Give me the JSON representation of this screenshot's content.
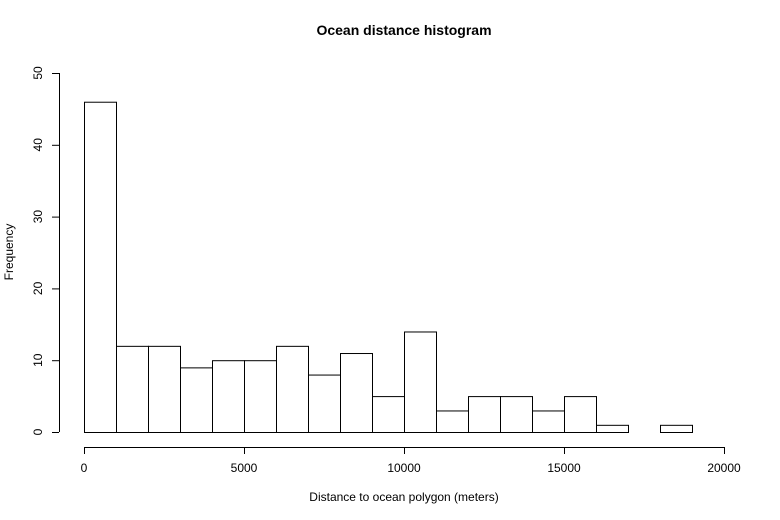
{
  "chart_data": {
    "type": "bar",
    "title": "Ocean distance histogram",
    "xlabel": "Distance to ocean polygon (meters)",
    "ylabel": "Frequency",
    "xlim": [
      0,
      20000
    ],
    "ylim": [
      0,
      50
    ],
    "x_ticks": [
      "0",
      "5000",
      "10000",
      "15000",
      "20000"
    ],
    "y_ticks": [
      "0",
      "10",
      "20",
      "30",
      "40",
      "50"
    ],
    "grid": false,
    "bins": [
      [
        0,
        1000
      ],
      [
        1000,
        2000
      ],
      [
        2000,
        3000
      ],
      [
        3000,
        4000
      ],
      [
        4000,
        5000
      ],
      [
        5000,
        6000
      ],
      [
        6000,
        7000
      ],
      [
        7000,
        8000
      ],
      [
        8000,
        9000
      ],
      [
        9000,
        10000
      ],
      [
        10000,
        11000
      ],
      [
        11000,
        12000
      ],
      [
        12000,
        13000
      ],
      [
        13000,
        14000
      ],
      [
        14000,
        15000
      ],
      [
        15000,
        16000
      ],
      [
        16000,
        17000
      ],
      [
        17000,
        18000
      ],
      [
        18000,
        19000
      ]
    ],
    "values": [
      46,
      12,
      12,
      9,
      10,
      10,
      12,
      8,
      11,
      5,
      14,
      3,
      5,
      5,
      3,
      5,
      1,
      0,
      1
    ]
  }
}
